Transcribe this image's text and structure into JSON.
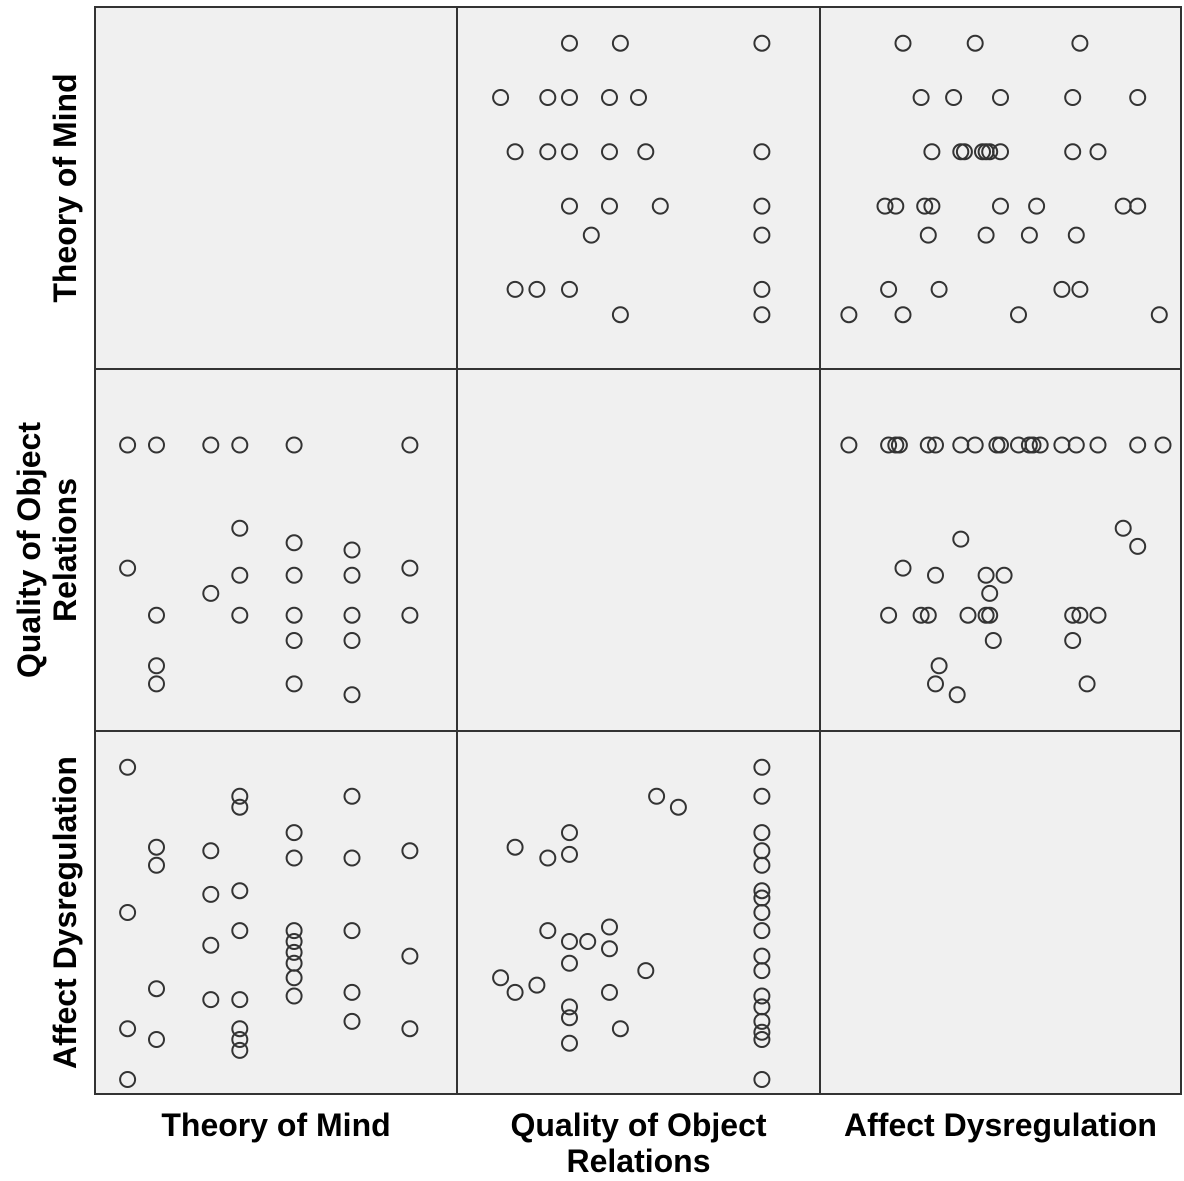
{
  "chart_data": {
    "type": "scatter-matrix",
    "variables": [
      "Theory of Mind",
      "Quality of Object Relations",
      "Affect Dysregulation"
    ],
    "row_labels": [
      {
        "lines": [
          "Theory of Mind"
        ]
      },
      {
        "lines": [
          "Quality of Object",
          "Relations"
        ]
      },
      {
        "lines": [
          "Affect Dysregulation"
        ]
      }
    ],
    "col_labels": [
      {
        "lines": [
          "Theory of Mind"
        ]
      },
      {
        "lines": [
          "Quality of Object",
          "Relations"
        ]
      },
      {
        "lines": [
          "Affect Dysregulation"
        ]
      }
    ],
    "background_color": "#f0f0f0",
    "border_color": "#333333",
    "marker": "open-circle",
    "cells": [
      {
        "row": 0,
        "col": 1,
        "points": [
          [
            0.31,
            0.1
          ],
          [
            0.45,
            0.1
          ],
          [
            0.84,
            0.1
          ],
          [
            0.12,
            0.25
          ],
          [
            0.25,
            0.25
          ],
          [
            0.31,
            0.25
          ],
          [
            0.42,
            0.25
          ],
          [
            0.5,
            0.25
          ],
          [
            0.16,
            0.4
          ],
          [
            0.25,
            0.4
          ],
          [
            0.31,
            0.4
          ],
          [
            0.42,
            0.4
          ],
          [
            0.52,
            0.4
          ],
          [
            0.84,
            0.4
          ],
          [
            0.31,
            0.55
          ],
          [
            0.42,
            0.55
          ],
          [
            0.56,
            0.55
          ],
          [
            0.84,
            0.55
          ],
          [
            0.37,
            0.63
          ],
          [
            0.84,
            0.63
          ],
          [
            0.16,
            0.78
          ],
          [
            0.22,
            0.78
          ],
          [
            0.31,
            0.78
          ],
          [
            0.84,
            0.78
          ],
          [
            0.45,
            0.85
          ],
          [
            0.84,
            0.85
          ]
        ]
      },
      {
        "row": 0,
        "col": 2,
        "points": [
          [
            0.23,
            0.1
          ],
          [
            0.43,
            0.1
          ],
          [
            0.72,
            0.1
          ],
          [
            0.28,
            0.25
          ],
          [
            0.37,
            0.25
          ],
          [
            0.5,
            0.25
          ],
          [
            0.7,
            0.25
          ],
          [
            0.88,
            0.25
          ],
          [
            0.31,
            0.4
          ],
          [
            0.39,
            0.4
          ],
          [
            0.4,
            0.4
          ],
          [
            0.45,
            0.4
          ],
          [
            0.46,
            0.4
          ],
          [
            0.47,
            0.4
          ],
          [
            0.5,
            0.4
          ],
          [
            0.7,
            0.4
          ],
          [
            0.77,
            0.4
          ],
          [
            0.18,
            0.55
          ],
          [
            0.21,
            0.55
          ],
          [
            0.29,
            0.55
          ],
          [
            0.31,
            0.55
          ],
          [
            0.5,
            0.55
          ],
          [
            0.6,
            0.55
          ],
          [
            0.84,
            0.55
          ],
          [
            0.88,
            0.55
          ],
          [
            0.3,
            0.63
          ],
          [
            0.46,
            0.63
          ],
          [
            0.58,
            0.63
          ],
          [
            0.71,
            0.63
          ],
          [
            0.19,
            0.78
          ],
          [
            0.33,
            0.78
          ],
          [
            0.67,
            0.78
          ],
          [
            0.72,
            0.78
          ],
          [
            0.08,
            0.85
          ],
          [
            0.23,
            0.85
          ],
          [
            0.55,
            0.85
          ],
          [
            0.94,
            0.85
          ]
        ]
      },
      {
        "row": 1,
        "col": 0,
        "points": [
          [
            0.09,
            0.21
          ],
          [
            0.17,
            0.21
          ],
          [
            0.32,
            0.21
          ],
          [
            0.4,
            0.21
          ],
          [
            0.55,
            0.21
          ],
          [
            0.87,
            0.21
          ],
          [
            0.4,
            0.44
          ],
          [
            0.55,
            0.48
          ],
          [
            0.71,
            0.5
          ],
          [
            0.09,
            0.55
          ],
          [
            0.4,
            0.57
          ],
          [
            0.55,
            0.57
          ],
          [
            0.71,
            0.57
          ],
          [
            0.87,
            0.55
          ],
          [
            0.32,
            0.62
          ],
          [
            0.17,
            0.68
          ],
          [
            0.4,
            0.68
          ],
          [
            0.55,
            0.68
          ],
          [
            0.71,
            0.68
          ],
          [
            0.87,
            0.68
          ],
          [
            0.55,
            0.75
          ],
          [
            0.71,
            0.75
          ],
          [
            0.17,
            0.82
          ],
          [
            0.17,
            0.87
          ],
          [
            0.55,
            0.87
          ],
          [
            0.71,
            0.9
          ]
        ]
      },
      {
        "row": 1,
        "col": 2,
        "points": [
          [
            0.08,
            0.21
          ],
          [
            0.19,
            0.21
          ],
          [
            0.21,
            0.21
          ],
          [
            0.22,
            0.21
          ],
          [
            0.3,
            0.21
          ],
          [
            0.32,
            0.21
          ],
          [
            0.39,
            0.21
          ],
          [
            0.43,
            0.21
          ],
          [
            0.49,
            0.21
          ],
          [
            0.5,
            0.21
          ],
          [
            0.55,
            0.21
          ],
          [
            0.58,
            0.21
          ],
          [
            0.59,
            0.21
          ],
          [
            0.61,
            0.21
          ],
          [
            0.67,
            0.21
          ],
          [
            0.71,
            0.21
          ],
          [
            0.77,
            0.21
          ],
          [
            0.88,
            0.21
          ],
          [
            0.95,
            0.21
          ],
          [
            0.84,
            0.44
          ],
          [
            0.88,
            0.49
          ],
          [
            0.39,
            0.47
          ],
          [
            0.23,
            0.55
          ],
          [
            0.32,
            0.57
          ],
          [
            0.46,
            0.57
          ],
          [
            0.51,
            0.57
          ],
          [
            0.47,
            0.62
          ],
          [
            0.19,
            0.68
          ],
          [
            0.28,
            0.68
          ],
          [
            0.3,
            0.68
          ],
          [
            0.41,
            0.68
          ],
          [
            0.46,
            0.68
          ],
          [
            0.47,
            0.68
          ],
          [
            0.7,
            0.68
          ],
          [
            0.72,
            0.68
          ],
          [
            0.77,
            0.68
          ],
          [
            0.48,
            0.75
          ],
          [
            0.7,
            0.75
          ],
          [
            0.33,
            0.82
          ],
          [
            0.32,
            0.87
          ],
          [
            0.38,
            0.9
          ],
          [
            0.74,
            0.87
          ]
        ]
      },
      {
        "row": 2,
        "col": 0,
        "points": [
          [
            0.09,
            0.1
          ],
          [
            0.4,
            0.18
          ],
          [
            0.4,
            0.21
          ],
          [
            0.71,
            0.18
          ],
          [
            0.55,
            0.28
          ],
          [
            0.55,
            0.35
          ],
          [
            0.71,
            0.35
          ],
          [
            0.87,
            0.33
          ],
          [
            0.17,
            0.32
          ],
          [
            0.17,
            0.37
          ],
          [
            0.32,
            0.33
          ],
          [
            0.09,
            0.5
          ],
          [
            0.32,
            0.45
          ],
          [
            0.4,
            0.44
          ],
          [
            0.4,
            0.55
          ],
          [
            0.55,
            0.55
          ],
          [
            0.55,
            0.58
          ],
          [
            0.55,
            0.61
          ],
          [
            0.55,
            0.64
          ],
          [
            0.55,
            0.68
          ],
          [
            0.71,
            0.55
          ],
          [
            0.32,
            0.59
          ],
          [
            0.87,
            0.62
          ],
          [
            0.71,
            0.72
          ],
          [
            0.17,
            0.71
          ],
          [
            0.32,
            0.74
          ],
          [
            0.4,
            0.74
          ],
          [
            0.55,
            0.73
          ],
          [
            0.71,
            0.8
          ],
          [
            0.4,
            0.82
          ],
          [
            0.4,
            0.85
          ],
          [
            0.4,
            0.88
          ],
          [
            0.09,
            0.82
          ],
          [
            0.17,
            0.85
          ],
          [
            0.87,
            0.82
          ],
          [
            0.09,
            0.96
          ]
        ]
      },
      {
        "row": 2,
        "col": 1,
        "points": [
          [
            0.84,
            0.1
          ],
          [
            0.84,
            0.18
          ],
          [
            0.84,
            0.28
          ],
          [
            0.84,
            0.33
          ],
          [
            0.84,
            0.37
          ],
          [
            0.84,
            0.44
          ],
          [
            0.84,
            0.46
          ],
          [
            0.84,
            0.5
          ],
          [
            0.84,
            0.55
          ],
          [
            0.84,
            0.62
          ],
          [
            0.84,
            0.66
          ],
          [
            0.84,
            0.73
          ],
          [
            0.84,
            0.76
          ],
          [
            0.84,
            0.8
          ],
          [
            0.84,
            0.83
          ],
          [
            0.84,
            0.85
          ],
          [
            0.84,
            0.96
          ],
          [
            0.55,
            0.18
          ],
          [
            0.61,
            0.21
          ],
          [
            0.16,
            0.32
          ],
          [
            0.31,
            0.28
          ],
          [
            0.31,
            0.34
          ],
          [
            0.25,
            0.35
          ],
          [
            0.25,
            0.55
          ],
          [
            0.31,
            0.58
          ],
          [
            0.36,
            0.58
          ],
          [
            0.42,
            0.54
          ],
          [
            0.42,
            0.6
          ],
          [
            0.31,
            0.64
          ],
          [
            0.52,
            0.66
          ],
          [
            0.12,
            0.68
          ],
          [
            0.16,
            0.72
          ],
          [
            0.22,
            0.7
          ],
          [
            0.42,
            0.72
          ],
          [
            0.31,
            0.76
          ],
          [
            0.31,
            0.79
          ],
          [
            0.45,
            0.82
          ],
          [
            0.31,
            0.86
          ]
        ]
      }
    ]
  }
}
